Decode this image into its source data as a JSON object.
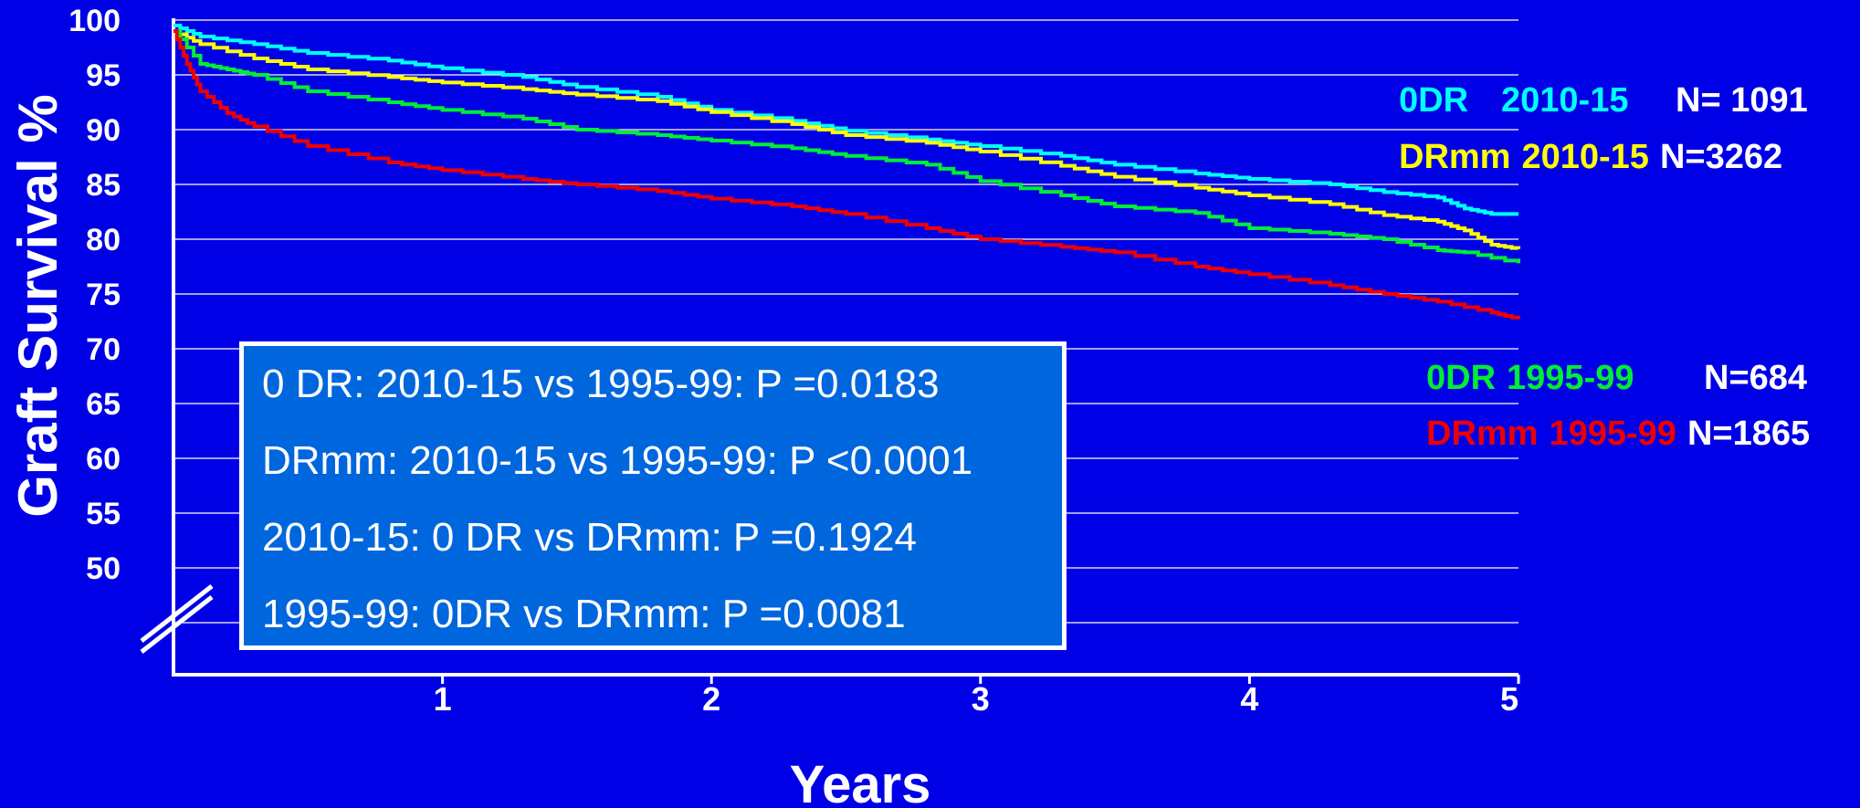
{
  "chart_data": {
    "type": "line",
    "xlabel": "Years",
    "ylabel": "Graft Survival %",
    "xlim": [
      0,
      5
    ],
    "ylim": [
      45,
      100
    ],
    "y_ticks": [
      "100",
      "95",
      "90",
      "85",
      "80",
      "75",
      "70",
      "65",
      "60",
      "55",
      "50"
    ],
    "x_ticks": [
      "1",
      "2",
      "3",
      "4",
      "5"
    ],
    "axis_break": true,
    "grid": true,
    "series": [
      {
        "name": "0DR 2010-15",
        "n_label": "N= 1091",
        "color": "#00FFFF",
        "x": [
          0,
          0.1,
          0.3,
          0.5,
          0.8,
          1.0,
          1.3,
          1.5,
          1.8,
          2.0,
          2.3,
          2.5,
          2.8,
          3.0,
          3.3,
          3.5,
          3.8,
          4.0,
          4.3,
          4.5,
          4.7,
          4.8,
          4.9,
          5.0
        ],
        "y": [
          99.5,
          98.5,
          97.8,
          97.0,
          96.3,
          95.6,
          94.8,
          93.9,
          93.0,
          91.8,
          90.8,
          89.9,
          89.1,
          88.5,
          87.6,
          86.8,
          86.0,
          85.5,
          85.0,
          84.3,
          83.8,
          82.8,
          82.3,
          82.3
        ]
      },
      {
        "name": "DRmm 2010-15",
        "n_label": "N=3262",
        "color": "#FFFF00",
        "x": [
          0,
          0.1,
          0.3,
          0.5,
          0.8,
          1.0,
          1.3,
          1.5,
          1.8,
          2.0,
          2.3,
          2.5,
          2.8,
          3.0,
          3.3,
          3.5,
          3.8,
          4.0,
          4.3,
          4.5,
          4.7,
          4.8,
          4.9,
          5.0
        ],
        "y": [
          99.0,
          97.8,
          96.5,
          95.5,
          94.8,
          94.3,
          93.7,
          93.2,
          92.6,
          91.6,
          90.5,
          89.5,
          88.8,
          88.0,
          86.7,
          85.7,
          84.7,
          84.0,
          83.2,
          82.2,
          81.6,
          80.8,
          79.5,
          79.1
        ]
      },
      {
        "name": "0DR 1995-99",
        "n_label": "N=684",
        "color": "#00EE33",
        "x": [
          0,
          0.1,
          0.2,
          0.3,
          0.5,
          0.8,
          1.0,
          1.3,
          1.5,
          1.8,
          2.0,
          2.3,
          2.5,
          2.8,
          3.0,
          3.3,
          3.5,
          3.8,
          4.0,
          4.3,
          4.5,
          4.7,
          4.8,
          5.0
        ],
        "y": [
          99.0,
          96.0,
          95.5,
          95.0,
          93.5,
          92.5,
          91.8,
          91.0,
          90.0,
          89.5,
          89.0,
          88.3,
          87.6,
          86.8,
          85.3,
          84.0,
          83.0,
          82.4,
          81.0,
          80.5,
          80.0,
          79.0,
          78.8,
          77.8
        ]
      },
      {
        "name": "DRmm 1995-99",
        "n_label": "N=1865",
        "color": "#EE0000",
        "x": [
          0,
          0.05,
          0.1,
          0.2,
          0.3,
          0.5,
          0.8,
          1.0,
          1.3,
          1.5,
          1.8,
          2.0,
          2.3,
          2.5,
          2.8,
          3.0,
          3.3,
          3.5,
          3.8,
          4.0,
          4.3,
          4.5,
          4.7,
          4.9,
          5.0
        ],
        "y": [
          99.0,
          96.0,
          93.5,
          91.5,
          90.3,
          88.5,
          87.0,
          86.3,
          85.5,
          85.0,
          84.4,
          83.7,
          83.0,
          82.3,
          81.0,
          80.0,
          79.3,
          78.8,
          77.5,
          76.8,
          75.8,
          75.0,
          74.3,
          73.3,
          72.7
        ]
      }
    ],
    "annotations": [
      "0 DR: 2010-15 vs 1995-99: P =0.0183",
      "DRmm: 2010-15 vs 1995-99: P <0.0001",
      "2010-15: 0 DR vs DRmm: P =0.1924",
      "1995-99: 0DR vs DRmm: P =0.0081"
    ]
  },
  "legend": [
    {
      "group": "0DR",
      "period": "2010-15",
      "n": "N= 1091",
      "color": "#00FFFF"
    },
    {
      "group": "DRmm",
      "period": "2010-15",
      "n": "N=3262",
      "color": "#FFFF00"
    },
    {
      "group": "0DR",
      "period": "1995-99",
      "n": "N=684",
      "color": "#00EE33"
    },
    {
      "group": "DRmm",
      "period": "1995-99",
      "n": "N=1865",
      "color": "#EE0000"
    }
  ],
  "colors": {
    "background": "#0000E6",
    "stats_box": "#0066DD",
    "text": "#FFFFFF",
    "grid": "#FFFFFF"
  }
}
